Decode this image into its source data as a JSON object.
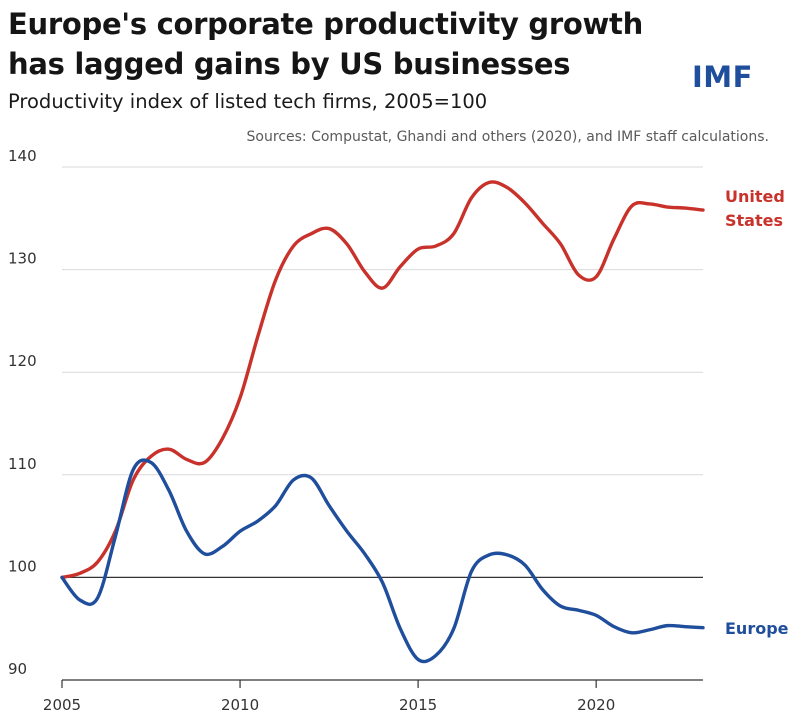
{
  "header": {
    "title_line1": "Europe's corporate productivity growth",
    "title_line2": "has lagged gains by US businesses",
    "brand": "IMF",
    "subtitle": "Productivity index of listed tech firms, 2005=100",
    "source": "Sources: Compustat, Ghandi and others (2020), and IMF staff calculations."
  },
  "chart_data": {
    "type": "line",
    "title": "Europe's corporate productivity growth has lagged gains by US businesses",
    "subtitle": "Productivity index of listed tech firms, 2005=100",
    "xlabel": "",
    "ylabel": "",
    "xlim": [
      2005,
      2023
    ],
    "ylim": [
      90,
      140
    ],
    "x_ticks": [
      2005,
      2010,
      2015,
      2020
    ],
    "y_ticks": [
      90,
      100,
      110,
      120,
      130,
      140
    ],
    "baseline": 100,
    "grid": "horizontal",
    "legend": "direct labels at right end of lines",
    "series": [
      {
        "name": "United States",
        "color": "#c8322b",
        "points": [
          [
            2005,
            100
          ],
          [
            2005.5,
            100.4
          ],
          [
            2006,
            101.5
          ],
          [
            2006.5,
            104.5
          ],
          [
            2007,
            109.5
          ],
          [
            2007.5,
            111.8
          ],
          [
            2008,
            112.5
          ],
          [
            2008.5,
            111.5
          ],
          [
            2009,
            111.2
          ],
          [
            2009.5,
            113.5
          ],
          [
            2010,
            117.5
          ],
          [
            2010.5,
            123.5
          ],
          [
            2011,
            129
          ],
          [
            2011.5,
            132.3
          ],
          [
            2012,
            133.5
          ],
          [
            2012.5,
            134
          ],
          [
            2013,
            132.5
          ],
          [
            2013.5,
            129.8
          ],
          [
            2014,
            128.2
          ],
          [
            2014.5,
            130.3
          ],
          [
            2015,
            132
          ],
          [
            2015.5,
            132.3
          ],
          [
            2016,
            133.5
          ],
          [
            2016.5,
            137
          ],
          [
            2017,
            138.5
          ],
          [
            2017.5,
            138
          ],
          [
            2018,
            136.5
          ],
          [
            2018.5,
            134.5
          ],
          [
            2019,
            132.5
          ],
          [
            2019.5,
            129.5
          ],
          [
            2020,
            129.3
          ],
          [
            2020.5,
            133
          ],
          [
            2021,
            136.2
          ],
          [
            2021.5,
            136.4
          ],
          [
            2022,
            136.1
          ],
          [
            2022.5,
            136
          ],
          [
            2023,
            135.8
          ]
        ]
      },
      {
        "name": "Europe",
        "color": "#1f4e9c",
        "points": [
          [
            2005,
            100
          ],
          [
            2005.5,
            97.8
          ],
          [
            2006,
            98
          ],
          [
            2006.5,
            104
          ],
          [
            2007,
            110.5
          ],
          [
            2007.5,
            111.2
          ],
          [
            2008,
            108.5
          ],
          [
            2008.5,
            104.5
          ],
          [
            2009,
            102.3
          ],
          [
            2009.5,
            103
          ],
          [
            2010,
            104.5
          ],
          [
            2010.5,
            105.5
          ],
          [
            2011,
            107
          ],
          [
            2011.5,
            109.5
          ],
          [
            2012,
            109.7
          ],
          [
            2012.5,
            107
          ],
          [
            2013,
            104.5
          ],
          [
            2013.5,
            102.3
          ],
          [
            2014,
            99.5
          ],
          [
            2014.5,
            95
          ],
          [
            2015,
            92
          ],
          [
            2015.5,
            92.4
          ],
          [
            2016,
            95
          ],
          [
            2016.5,
            100.6
          ],
          [
            2017,
            102.2
          ],
          [
            2017.5,
            102.2
          ],
          [
            2018,
            101.2
          ],
          [
            2018.5,
            98.8
          ],
          [
            2019,
            97.2
          ],
          [
            2019.5,
            96.8
          ],
          [
            2020,
            96.3
          ],
          [
            2020.5,
            95.2
          ],
          [
            2021,
            94.6
          ],
          [
            2021.5,
            94.9
          ],
          [
            2022,
            95.3
          ],
          [
            2022.5,
            95.2
          ],
          [
            2023,
            95.1
          ]
        ]
      }
    ],
    "series_labels": [
      "United",
      "States",
      "Europe"
    ]
  }
}
